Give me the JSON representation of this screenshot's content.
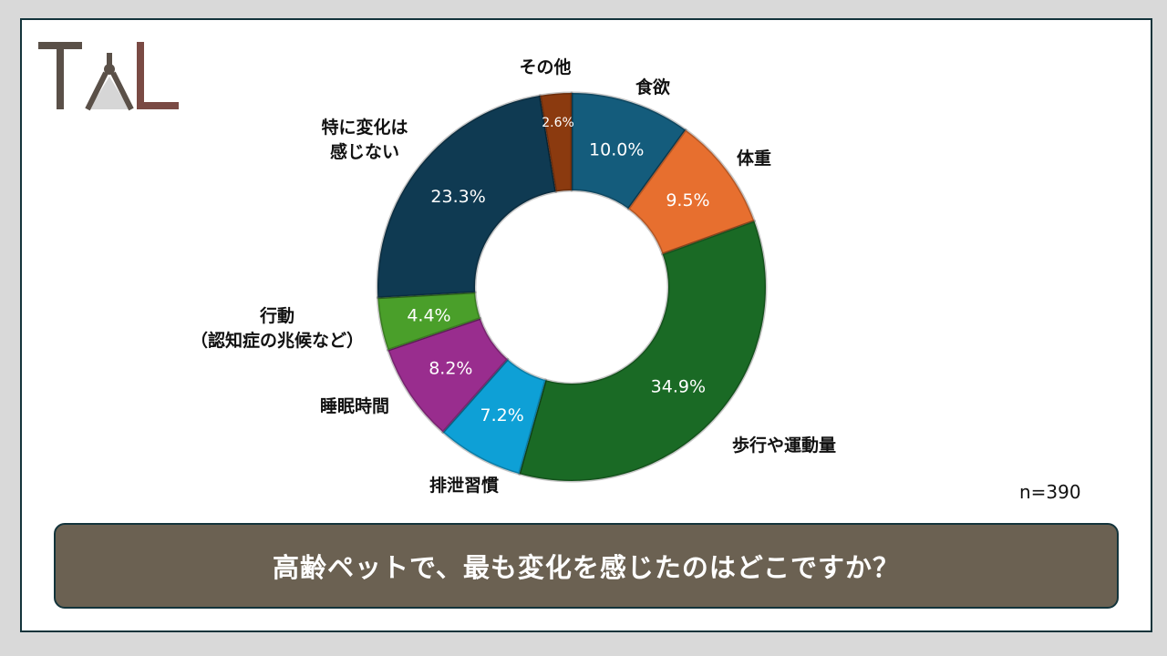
{
  "logo": {
    "text": "TAL",
    "colors": {
      "t": "#5a5048",
      "a": "#5a5048",
      "l": "#7a4a44",
      "triangle": "#d6d6d6"
    }
  },
  "question": "高齢ペットで、最も変化を感じたのはどこですか？",
  "sample_size": "n=390",
  "chart_data": {
    "type": "pie",
    "subtype": "donut",
    "title": "",
    "categories": [
      "食欲",
      "体重",
      "歩行や運動量",
      "排泄習慣",
      "睡眠時間",
      "行動\n（認知症の兆候など）",
      "特に変化は\n感じない",
      "その他"
    ],
    "values": [
      10.0,
      9.5,
      34.9,
      7.2,
      8.2,
      4.4,
      23.3,
      2.6
    ],
    "value_labels": [
      "10.0%",
      "9.5%",
      "34.9%",
      "7.2%",
      "8.2%",
      "4.4%",
      "23.3%",
      "2.6%"
    ],
    "colors": [
      "#145c7c",
      "#e76f2f",
      "#1a6a25",
      "#0ea0d6",
      "#992d8e",
      "#4a9f2a",
      "#0f3a52",
      "#8b3a0f"
    ],
    "start_angle_deg": 0,
    "direction": "clockwise",
    "legend": "none"
  }
}
